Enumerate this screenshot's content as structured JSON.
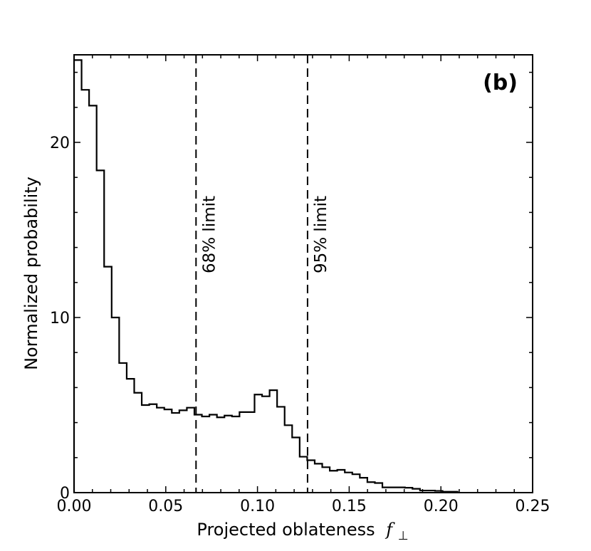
{
  "chart_data": {
    "type": "histogram",
    "panel_label": "(b)",
    "xlabel": "Projected oblateness",
    "xlabel_symbol": "f",
    "xlabel_symbol_subscript": "⊥",
    "ylabel": "Normalized probability",
    "xlim": [
      0,
      0.25
    ],
    "ylim": [
      0,
      25
    ],
    "xticks": [
      {
        "value": 0.0,
        "label": "0.00"
      },
      {
        "value": 0.05,
        "label": "0.05"
      },
      {
        "value": 0.1,
        "label": "0.10"
      },
      {
        "value": 0.15,
        "label": "0.15"
      },
      {
        "value": 0.2,
        "label": "0.20"
      },
      {
        "value": 0.25,
        "label": "0.25"
      }
    ],
    "yticks": [
      {
        "value": 0,
        "label": "0"
      },
      {
        "value": 10,
        "label": "10"
      },
      {
        "value": 20,
        "label": "20"
      }
    ],
    "bin_width": 0.0041,
    "bin_edges_start": 0,
    "values": [
      24.7,
      23.0,
      22.1,
      18.4,
      12.9,
      10.0,
      7.4,
      6.5,
      5.7,
      5.0,
      5.05,
      4.85,
      4.75,
      4.55,
      4.7,
      4.85,
      4.45,
      4.35,
      4.45,
      4.3,
      4.4,
      4.35,
      4.6,
      4.6,
      5.6,
      5.5,
      5.85,
      4.9,
      3.85,
      3.15,
      2.05,
      1.85,
      1.65,
      1.45,
      1.25,
      1.3,
      1.15,
      1.05,
      0.85,
      0.6,
      0.55,
      0.3,
      0.3,
      0.3,
      0.28,
      0.22,
      0.12,
      0.12,
      0.1,
      0.05,
      0.05
    ],
    "vertical_lines": [
      {
        "x": 0.0665,
        "label": "68% limit",
        "style": "dashed"
      },
      {
        "x": 0.1273,
        "label": "95% limit",
        "style": "dashed"
      }
    ],
    "grid": false,
    "line_color": "#000000"
  }
}
